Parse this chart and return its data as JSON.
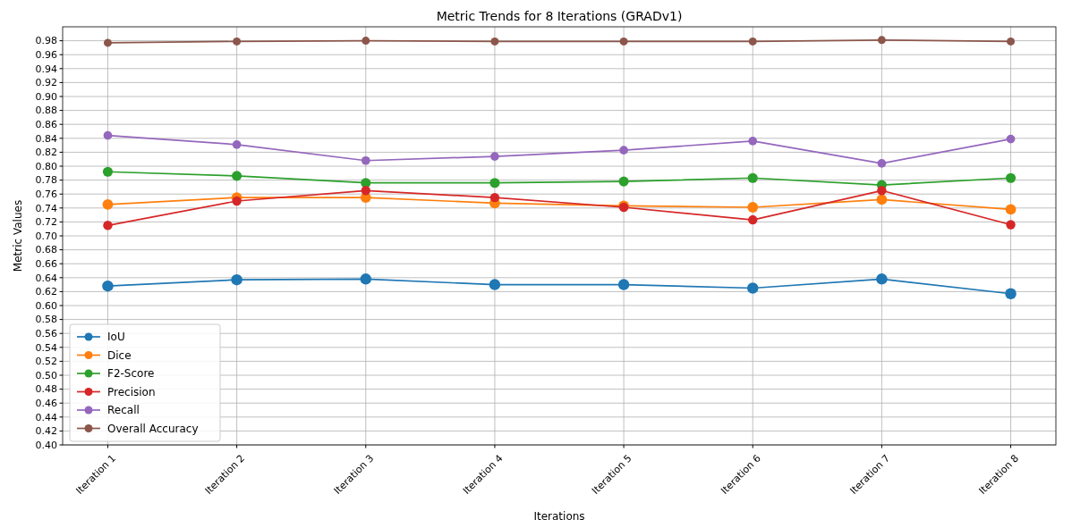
{
  "chart_data": {
    "type": "line",
    "title": "Metric Trends for 8 Iterations (GRADv1)",
    "xlabel": "Iterations",
    "ylabel": "Metric Values",
    "categories": [
      "Iteration 1",
      "Iteration 2",
      "Iteration 3",
      "Iteration 4",
      "Iteration 5",
      "Iteration 6",
      "Iteration 7",
      "Iteration 8"
    ],
    "series": [
      {
        "name": "IoU",
        "color": "#1f77b4",
        "values": [
          0.628,
          0.637,
          0.638,
          0.63,
          0.63,
          0.625,
          0.638,
          0.617
        ]
      },
      {
        "name": "Dice",
        "color": "#ff7f0e",
        "values": [
          0.745,
          0.755,
          0.755,
          0.747,
          0.743,
          0.741,
          0.752,
          0.738
        ]
      },
      {
        "name": "F2-Score",
        "color": "#2ca02c",
        "values": [
          0.792,
          0.786,
          0.776,
          0.776,
          0.778,
          0.783,
          0.773,
          0.783
        ]
      },
      {
        "name": "Precision",
        "color": "#d62728",
        "values": [
          0.715,
          0.75,
          0.765,
          0.755,
          0.741,
          0.723,
          0.765,
          0.716
        ]
      },
      {
        "name": "Recall",
        "color": "#9467bd",
        "values": [
          0.844,
          0.831,
          0.808,
          0.814,
          0.823,
          0.836,
          0.804,
          0.839
        ]
      },
      {
        "name": "Overall Accuracy",
        "color": "#8c564b",
        "values": [
          0.977,
          0.979,
          0.98,
          0.979,
          0.979,
          0.979,
          0.981,
          0.979
        ]
      }
    ],
    "ylim": [
      0.4,
      1.0
    ],
    "yticks": [
      {
        "value": 0.4,
        "label": "0.40"
      },
      0.42,
      0.44,
      0.46,
      0.48,
      {
        "value": 0.5,
        "label": "0.50"
      },
      0.52,
      0.54,
      0.56,
      0.58,
      {
        "value": 0.6,
        "label": "0.60"
      },
      0.62,
      0.64,
      0.66,
      0.68,
      {
        "value": 0.7,
        "label": "0.70"
      },
      0.72,
      0.74,
      0.76,
      0.78,
      {
        "value": 0.8,
        "label": "0.80"
      },
      0.82,
      0.84,
      0.86,
      0.88,
      {
        "value": 0.9,
        "label": "0.90"
      },
      0.92,
      0.94,
      0.96,
      0.98
    ],
    "grid": true,
    "legend": "bottom left",
    "marker": "circle",
    "line_style": "solid"
  }
}
